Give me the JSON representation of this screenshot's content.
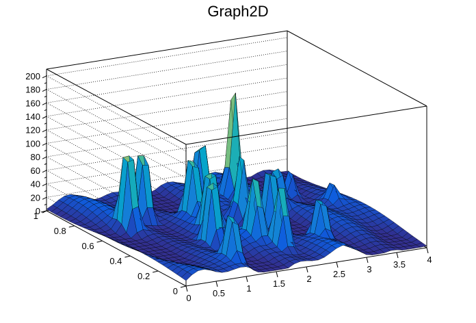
{
  "chart_data": {
    "type": "surface3d",
    "title": "Graph2D",
    "xlabel": "",
    "ylabel": "",
    "zlabel": "",
    "xlim": [
      0,
      4
    ],
    "ylim": [
      0,
      1
    ],
    "zlim": [
      0,
      210
    ],
    "x_ticks": [
      "0",
      "0.5",
      "1",
      "1.5",
      "2",
      "2.5",
      "3",
      "3.5",
      "4"
    ],
    "y_ticks": [
      "0",
      "0.2",
      "0.4",
      "0.6",
      "0.8",
      "1"
    ],
    "z_ticks": [
      "0",
      "20",
      "40",
      "60",
      "80",
      "100",
      "120",
      "140",
      "160",
      "180",
      "200"
    ],
    "grid": true,
    "colormap": [
      "#352a87",
      "#0f5cdd",
      "#1481d6",
      "#06a4ca",
      "#2eb7a4",
      "#87bf77",
      "#d1bb59",
      "#fec832",
      "#f9fb0e"
    ],
    "peaks": [
      {
        "x": 0.55,
        "y": 0.65,
        "z": 148
      },
      {
        "x": 0.95,
        "y": 0.72,
        "z": 140
      },
      {
        "x": 1.05,
        "y": 0.12,
        "z": 92
      },
      {
        "x": 1.25,
        "y": 0.35,
        "z": 128
      },
      {
        "x": 1.45,
        "y": 0.45,
        "z": 110
      },
      {
        "x": 1.55,
        "y": 0.62,
        "z": 120
      },
      {
        "x": 1.85,
        "y": 0.3,
        "z": 118
      },
      {
        "x": 2.05,
        "y": 0.2,
        "z": 123
      },
      {
        "x": 2.05,
        "y": 0.78,
        "z": 115
      },
      {
        "x": 2.2,
        "y": 0.55,
        "z": 100
      },
      {
        "x": 2.45,
        "y": 0.45,
        "z": 120
      },
      {
        "x": 2.6,
        "y": 0.78,
        "z": 168
      },
      {
        "x": 2.75,
        "y": 0.22,
        "z": 84
      },
      {
        "x": 2.95,
        "y": 0.62,
        "z": 70
      },
      {
        "x": 3.4,
        "y": 0.72,
        "z": 48
      },
      {
        "x": 3.7,
        "y": 0.55,
        "z": 28
      }
    ]
  }
}
